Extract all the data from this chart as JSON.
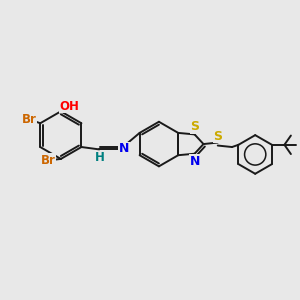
{
  "background_color": "#e8e8e8",
  "bond_color": "#1a1a1a",
  "atom_colors": {
    "Br": "#cc6600",
    "OH_O": "#ff0000",
    "OH_H": "#008080",
    "H_imine": "#008080",
    "N_imine": "#0000ee",
    "S_thz": "#ccaa00",
    "S_link": "#ccaa00",
    "N_thz": "#0000ee"
  },
  "figsize": [
    3.0,
    3.0
  ],
  "dpi": 100,
  "xlim": [
    0,
    10
  ],
  "ylim": [
    0,
    10
  ]
}
